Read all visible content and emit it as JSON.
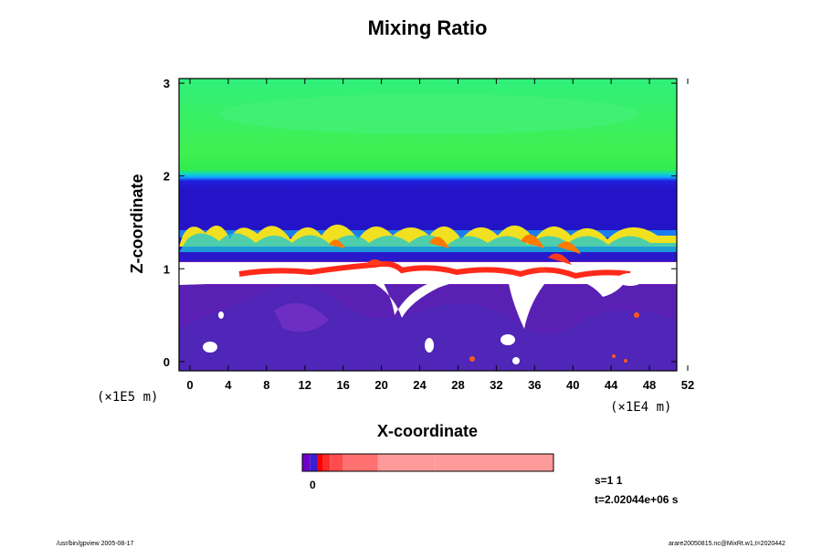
{
  "chart_data": {
    "type": "heatmap",
    "title": "Mixing Ratio",
    "xlabel": "X-coordinate",
    "ylabel": "Z-coordinate",
    "x_scale_note": "(×1E4 m)",
    "y_scale_note": "(×1E5 m)",
    "xlim": [
      0,
      52
    ],
    "ylim": [
      -0.1,
      3.05
    ],
    "x_ticks": [
      "0",
      "4",
      "8",
      "12",
      "16",
      "20",
      "24",
      "28",
      "32",
      "36",
      "40",
      "44",
      "48",
      "52"
    ],
    "y_ticks": [
      "0",
      "1",
      "2",
      "3"
    ],
    "colorbar": {
      "label": "0",
      "colors": [
        "#7000c8",
        "#3a1ed0",
        "#ff0000",
        "#ff2a2a",
        "#ff4c4c",
        "#ff7070",
        "#ff9a9a"
      ]
    },
    "info_lines": [
      "s=1 1",
      "t=2.02044e+06 s"
    ],
    "footer_left": "/usr/bin/gpview 2005-08-17",
    "footer_right": "arare20050815.nc@MixRt.w1,t=2020442"
  }
}
